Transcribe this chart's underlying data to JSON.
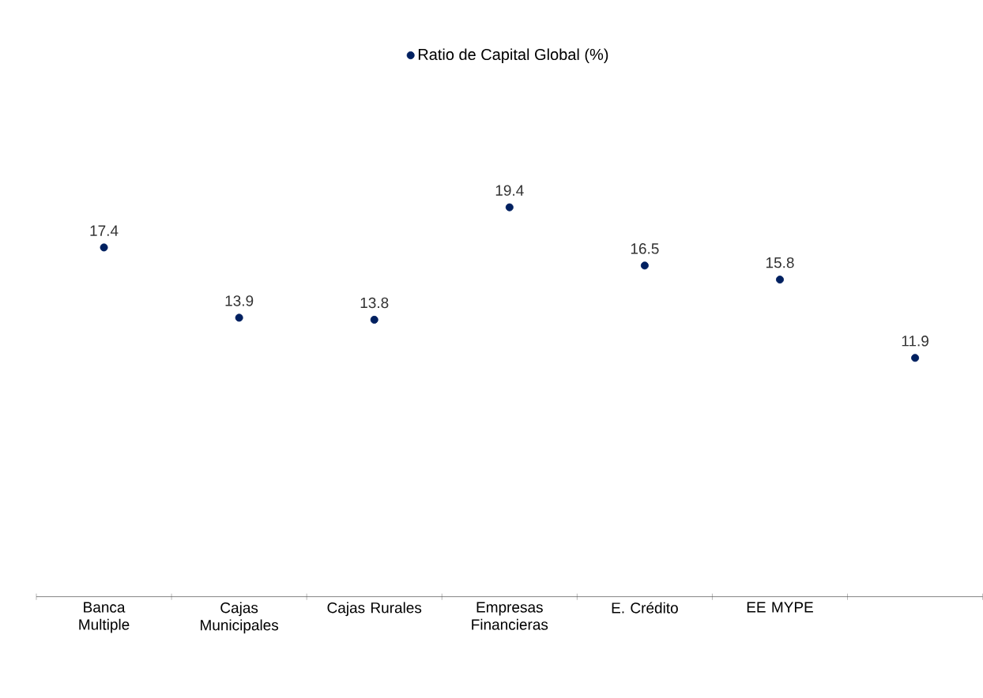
{
  "chart_data": {
    "type": "scatter",
    "categories": [
      "Banca Multiple",
      "Cajas Municipales",
      "Cajas Rurales",
      "Empresas Financieras",
      "E. Crédito",
      "EE MYPE",
      null
    ],
    "series": [
      {
        "name": "Ratio de Capital Global (%)",
        "color": "#002060",
        "values": [
          17.4,
          13.9,
          13.8,
          19.4,
          16.5,
          15.8,
          11.9
        ]
      }
    ],
    "data_labels": true,
    "legend": "top",
    "marker": "circle"
  }
}
